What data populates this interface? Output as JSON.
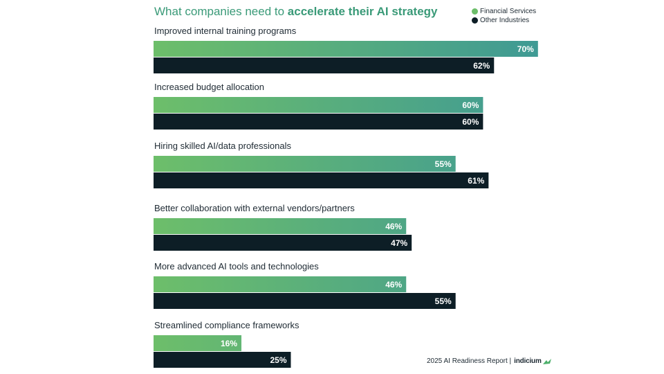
{
  "colors": {
    "financial_start": "#6dbe6a",
    "financial_end": "#3f9a94",
    "other": "#0d1e26",
    "title": "#3a9a78",
    "text": "#1e2a33"
  },
  "title_prefix": "What companies need to ",
  "title_bold": "accelerate their AI strategy",
  "footer": {
    "report": "2025 AI Readiness Report |",
    "brand": "indicium"
  },
  "chart_data": {
    "type": "bar",
    "orientation": "horizontal",
    "title": "What companies need to accelerate their AI strategy",
    "categories": [
      "Improved internal training programs",
      "Increased budget allocation",
      "Hiring skilled AI/data professionals",
      "Better collaboration with external vendors/partners",
      "More advanced AI tools and technologies",
      "Streamlined compliance frameworks"
    ],
    "series": [
      {
        "name": "Financial Services",
        "values": [
          70,
          60,
          55,
          46,
          46,
          16
        ],
        "labels": [
          "70%",
          "60%",
          "55%",
          "46%",
          "46%",
          "16%"
        ]
      },
      {
        "name": "Other Industries",
        "values": [
          62,
          60,
          61,
          47,
          55,
          25
        ],
        "labels": [
          "62%",
          "60%",
          "61%",
          "47%",
          "55%",
          "25%"
        ]
      }
    ],
    "xlim": [
      0,
      100
    ],
    "legend_position": "top-right",
    "grid": false
  }
}
